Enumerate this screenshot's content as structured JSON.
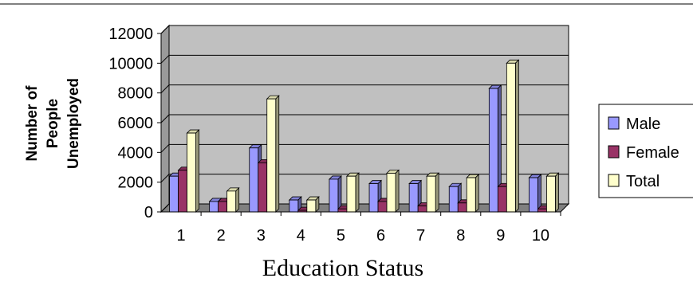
{
  "chart_data": {
    "type": "bar",
    "title": "",
    "xlabel": "Education Status",
    "ylabel_lines": [
      "Number of",
      "People",
      "Unemployed"
    ],
    "categories": [
      "1",
      "2",
      "3",
      "4",
      "5",
      "6",
      "7",
      "8",
      "9",
      "10"
    ],
    "series": [
      {
        "name": "Male",
        "color": "#9999ff",
        "values": [
          2400,
          700,
          4300,
          800,
          2200,
          1900,
          1900,
          1700,
          8300,
          2300
        ]
      },
      {
        "name": "Female",
        "color": "#993366",
        "values": [
          2800,
          700,
          3300,
          100,
          200,
          700,
          400,
          600,
          1700,
          200
        ]
      },
      {
        "name": "Total",
        "color": "#ffffcc",
        "values": [
          5300,
          1400,
          7600,
          800,
          2400,
          2600,
          2400,
          2300,
          10000,
          2400
        ]
      }
    ],
    "ylim": [
      0,
      12000
    ],
    "yticks": [
      "0",
      "2000",
      "4000",
      "6000",
      "8000",
      "10000",
      "12000"
    ],
    "grid": true,
    "legend_position": "right",
    "plot_background": "#c0c0c0"
  }
}
